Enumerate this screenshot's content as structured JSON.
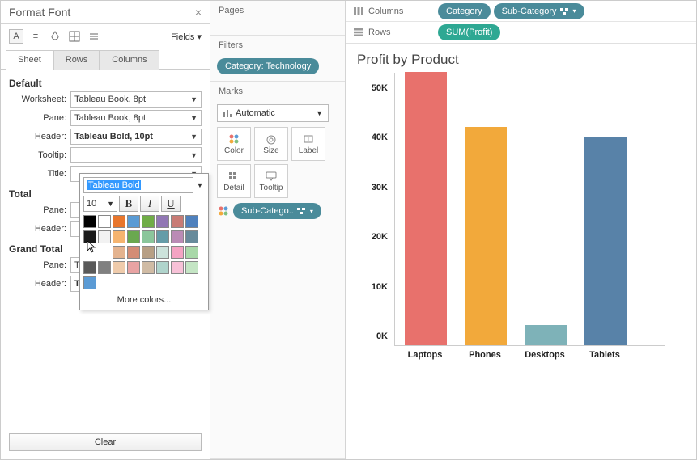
{
  "format_panel": {
    "title": "Format Font",
    "fields_label": "Fields",
    "tabs": {
      "sheet": "Sheet",
      "rows": "Rows",
      "columns": "Columns"
    },
    "sections": {
      "default": "Default",
      "total": "Total",
      "grand_total": "Grand Total"
    },
    "labels": {
      "worksheet": "Worksheet:",
      "pane": "Pane:",
      "header": "Header:",
      "tooltip": "Tooltip:",
      "title": "Title:"
    },
    "values": {
      "worksheet": "Tableau Book, 8pt",
      "pane": "Tableau Book, 8pt",
      "header": "Tableau Bold, 10pt",
      "tooltip": "",
      "total_pane": "",
      "total_header": "",
      "gt_pane": "Tableau Medium, 8pt",
      "gt_header": "Tableau Bold, 10pt"
    },
    "clear_label": "Clear"
  },
  "font_popup": {
    "font_name": "Tableau Bold",
    "size": "10",
    "more_colors": "More colors...",
    "swatches_row1": [
      "#000000",
      "#ffffff",
      "#e8762c",
      "#5a9bd4",
      "#70ad47",
      "#9177b4",
      "#c87b75",
      "#4f81bd"
    ],
    "swatches_row2": [
      "#1a1a1a",
      "#f2f2f2",
      "#f5b46f",
      "#6aa84f",
      "#8bc69b",
      "#659ca8",
      "#ba8bb5",
      "#678b9b"
    ],
    "swatches_row3": [
      "",
      "",
      "#e4b38f",
      "#d38c75",
      "#b79f84",
      "#cce2db",
      "#f4a3c3",
      "#a8d8a8"
    ],
    "swatches_row4": [
      "#595959",
      "#808080",
      "#efcbab",
      "#e8a3a3",
      "#d0bba4",
      "#b0d4cc",
      "#f7c1d7",
      "#c4e5c4"
    ],
    "swatches_row5": [
      "#404040",
      "",
      "",
      "",
      "",
      "",
      "",
      ""
    ],
    "swatch_single": "#5b9bd5"
  },
  "cards": {
    "pages": "Pages",
    "filters": "Filters",
    "filter_pill": "Category: Technology",
    "marks": "Marks",
    "marks_type": "Automatic",
    "mark_buttons": {
      "color": "Color",
      "size": "Size",
      "label": "Label",
      "detail": "Detail",
      "tooltip": "Tooltip"
    },
    "color_pill": "Sub-Catego.."
  },
  "shelves": {
    "columns_label": "Columns",
    "rows_label": "Rows",
    "col_pills": [
      "Category",
      "Sub-Category"
    ],
    "row_pill": "SUM(Profit)"
  },
  "chart": {
    "title": "Profit by Product",
    "categories": [
      "Laptops",
      "Phones",
      "Desktops",
      "Tablets"
    ],
    "values": [
      55,
      44,
      4,
      42
    ],
    "colors": [
      "#e8716c",
      "#f2a93b",
      "#7eb2b8",
      "#5882a8"
    ],
    "y_ticks": [
      "0K",
      "10K",
      "20K",
      "30K",
      "40K",
      "50K"
    ],
    "y_max": 55
  }
}
